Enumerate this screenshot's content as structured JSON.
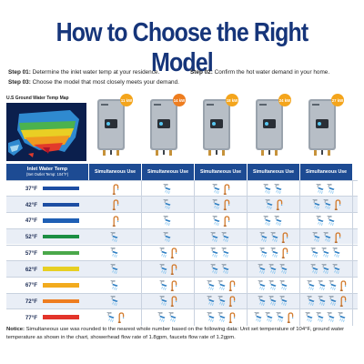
{
  "title": "How to Choose the Right Model",
  "steps": [
    {
      "label": "Step 01:",
      "text": "Determine the inlet water temp at your residence."
    },
    {
      "label": "Step 02:",
      "text": "Confirm the hot water demand in your home."
    },
    {
      "label": "Step 03:",
      "text": "Choose the model that most closely meets your demand."
    }
  ],
  "map": {
    "title": "U.S Ground Water Temp Map"
  },
  "models": [
    {
      "kw": "11 kW",
      "color": "#f4a51c"
    },
    {
      "kw": "14 kW",
      "color": "#ee7d1f"
    },
    {
      "kw": "18 kW",
      "color": "#f4a51c"
    },
    {
      "kw": "24 kW",
      "color": "#f4a51c"
    },
    {
      "kw": "27 kW",
      "color": "#f4a51c"
    }
  ],
  "header": {
    "inlet_title": "Inlet Water Temp",
    "inlet_sub": "(Set Outlet Temp: 104°F)",
    "col_label": "Simultaneous Use"
  },
  "rows": [
    {
      "temp": "37°F",
      "color": "#1d4ea3",
      "uses": [
        [
          "f"
        ],
        [
          "s"
        ],
        [
          "s",
          "f"
        ],
        [
          "s",
          "s"
        ],
        [
          "s",
          "s"
        ]
      ]
    },
    {
      "temp": "42°F",
      "color": "#1d4ea3",
      "uses": [
        [
          "f"
        ],
        [
          "s"
        ],
        [
          "s",
          "f"
        ],
        [
          "s",
          "f"
        ],
        [
          "s",
          "s",
          "f"
        ]
      ]
    },
    {
      "temp": "47°F",
      "color": "#1e5fb5",
      "uses": [
        [
          "f"
        ],
        [
          "s"
        ],
        [
          "s",
          "f"
        ],
        [
          "s",
          "s"
        ],
        [
          "s",
          "s"
        ]
      ]
    },
    {
      "temp": "52°F",
      "color": "#1c8f43",
      "uses": [
        [
          "s"
        ],
        [
          "s"
        ],
        [
          "s",
          "s"
        ],
        [
          "s",
          "s",
          "f"
        ],
        [
          "s",
          "s",
          "f"
        ]
      ]
    },
    {
      "temp": "57°F",
      "color": "#4aa84a",
      "uses": [
        [
          "s"
        ],
        [
          "s",
          "f"
        ],
        [
          "s",
          "s"
        ],
        [
          "s",
          "s",
          "f"
        ],
        [
          "s",
          "s",
          "s"
        ]
      ]
    },
    {
      "temp": "62°F",
      "color": "#e7cf23",
      "uses": [
        [
          "s"
        ],
        [
          "s",
          "f"
        ],
        [
          "s",
          "s"
        ],
        [
          "s",
          "s",
          "s"
        ],
        [
          "s",
          "s",
          "s"
        ]
      ]
    },
    {
      "temp": "67°F",
      "color": "#f2ab1e",
      "uses": [
        [
          "s"
        ],
        [
          "s",
          "f"
        ],
        [
          "s",
          "s",
          "f"
        ],
        [
          "s",
          "s",
          "s"
        ],
        [
          "s",
          "s",
          "s",
          "f"
        ]
      ]
    },
    {
      "temp": "72°F",
      "color": "#ee7d1f",
      "uses": [
        [
          "s"
        ],
        [
          "s",
          "f"
        ],
        [
          "s",
          "s",
          "f"
        ],
        [
          "s",
          "s",
          "s"
        ],
        [
          "s",
          "s",
          "s",
          "f"
        ]
      ]
    },
    {
      "temp": "77°F",
      "color": "#e3342a",
      "uses": [
        [
          "s",
          "f"
        ],
        [
          "s",
          "s"
        ],
        [
          "s",
          "s",
          "f"
        ],
        [
          "s",
          "s",
          "s",
          "f"
        ],
        [
          "s",
          "s",
          "s",
          "s"
        ]
      ]
    }
  ],
  "notice": {
    "label": "Notice:",
    "text": "Simultaneous use was rounded to the nearest whole number based on the following data: Unit set temperature of 104°F, ground water temperature as shown in the chart, showerhead flow rate of 1.8gpm, faucets flow rate of 1.2gpm."
  },
  "icon_names": {
    "s": "shower-icon",
    "f": "faucet-icon"
  },
  "colors": {
    "navy": "#1d4b93",
    "title": "#16357a",
    "shower": "#2e7fc3",
    "faucet": "#d27a2c",
    "row_alt": "#e9eef6"
  }
}
